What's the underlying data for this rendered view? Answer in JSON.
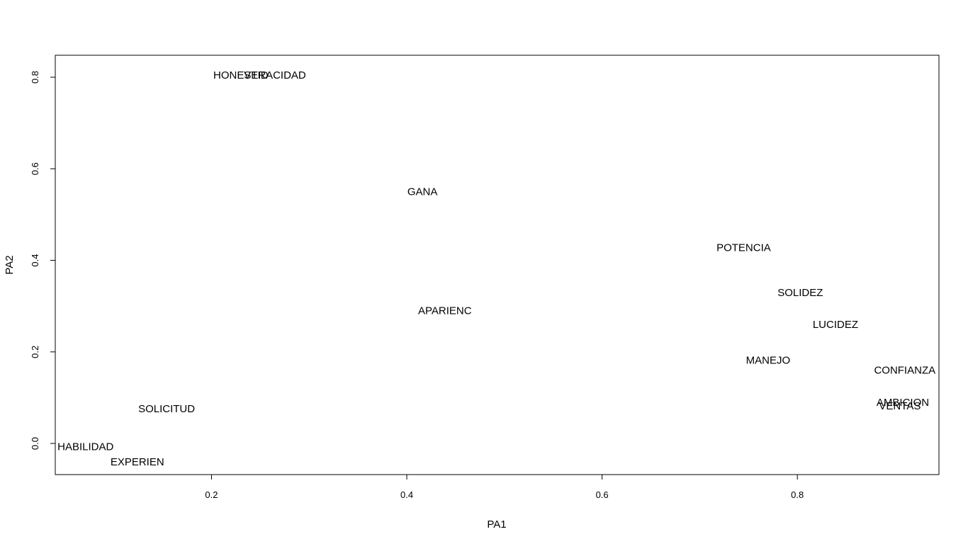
{
  "chart_data": {
    "type": "scatter",
    "title": "",
    "xlabel": "PA1",
    "ylabel": "PA2",
    "xlim": [
      0.04,
      0.945
    ],
    "ylim": [
      -0.068,
      0.848
    ],
    "xticks": [
      0.2,
      0.4,
      0.6,
      0.8
    ],
    "yticks": [
      0.0,
      0.2,
      0.4,
      0.6,
      0.8
    ],
    "xtick_labels": [
      "0.2",
      "0.4",
      "0.6",
      "0.8"
    ],
    "ytick_labels": [
      "0.0",
      "0.2",
      "0.4",
      "0.6",
      "0.8"
    ],
    "grid": false,
    "marker": "text-label",
    "points": [
      {
        "label": "HONESTID",
        "x": 0.23,
        "y": 0.805
      },
      {
        "label": "VERACIDAD",
        "x": 0.265,
        "y": 0.805
      },
      {
        "label": "GANA",
        "x": 0.416,
        "y": 0.55
      },
      {
        "label": "POTENCIA",
        "x": 0.745,
        "y": 0.428
      },
      {
        "label": "SOLIDEZ",
        "x": 0.803,
        "y": 0.33
      },
      {
        "label": "APARIENC",
        "x": 0.439,
        "y": 0.29
      },
      {
        "label": "LUCIDEZ",
        "x": 0.839,
        "y": 0.26
      },
      {
        "label": "MANEJO",
        "x": 0.77,
        "y": 0.182
      },
      {
        "label": "CONFIANZA",
        "x": 0.91,
        "y": 0.16
      },
      {
        "label": "AMBICION",
        "x": 0.908,
        "y": 0.09
      },
      {
        "label": "VENTAS",
        "x": 0.905,
        "y": 0.082
      },
      {
        "label": "SOLICITUD",
        "x": 0.154,
        "y": 0.076
      },
      {
        "label": "HABILIDAD",
        "x": 0.071,
        "y": -0.007
      },
      {
        "label": "EXPERIEN",
        "x": 0.124,
        "y": -0.04
      }
    ]
  }
}
